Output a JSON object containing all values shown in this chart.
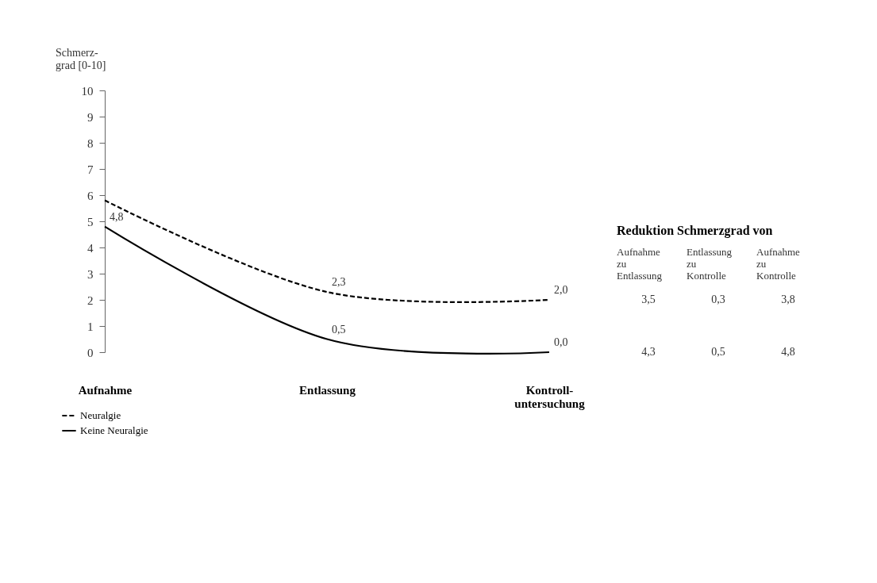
{
  "chart_data": {
    "type": "line",
    "ylabel": "Schmerz-grad [0-10]",
    "categories": [
      "Aufnahme",
      "Entlassung",
      "Kontroll-untersuchung"
    ],
    "series": [
      {
        "name": "Neuralgie",
        "color": "#000000",
        "line_style": "dashed",
        "values": [
          5.8,
          2.3,
          2.0
        ],
        "value_labels": [
          null,
          "2,3",
          "2,0"
        ]
      },
      {
        "name": "Keine Neuralgie",
        "color": "#000000",
        "line_style": "solid",
        "values": [
          4.8,
          0.5,
          0.0
        ],
        "value_labels": [
          "4,8",
          "0,5",
          "0,0"
        ]
      }
    ],
    "ylim": [
      0,
      10
    ],
    "yticks": [
      0,
      1,
      2,
      3,
      4,
      5,
      6,
      7,
      8,
      9,
      10
    ],
    "grid": false,
    "legend": "bottom left",
    "marker": "none",
    "annotations": [
      "Reduktion Schmerzgrad von",
      "Aufnahme zu Entlassung",
      "Entlassung zu Kontrolle",
      "Aufnahme zu Kontrolle",
      "3,5",
      "0,3",
      "3,8",
      "4,3",
      "0,5",
      "4,8"
    ]
  }
}
